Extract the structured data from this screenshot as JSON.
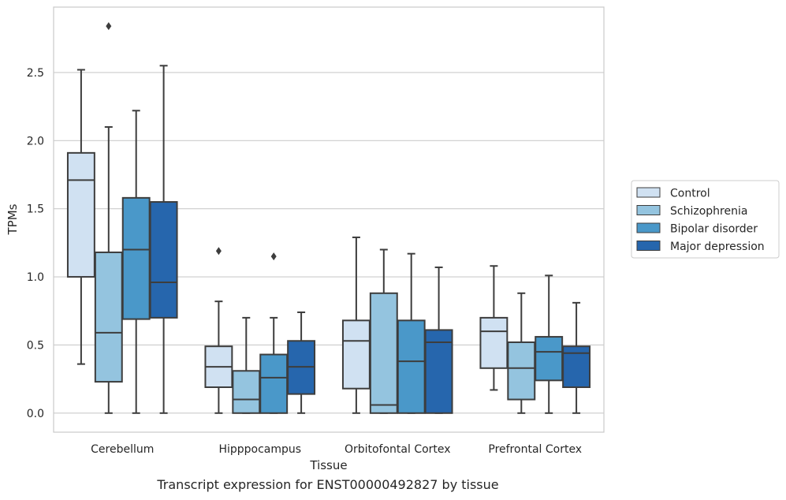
{
  "chart_data": {
    "type": "box",
    "xlabel": "Tissue",
    "ylabel": "TPMs",
    "caption": "Transcript expression for ENST00000492827 by tissue",
    "ylim": [
      -0.14,
      2.98
    ],
    "yticks": [
      "0.0",
      "0.5",
      "1.0",
      "1.5",
      "2.0",
      "2.5"
    ],
    "ytick_values": [
      0.0,
      0.5,
      1.0,
      1.5,
      2.0,
      2.5
    ],
    "grid": "horizontal",
    "legend_position": "right",
    "categories": [
      "Cerebellum",
      "Hipppocampus",
      "Orbitofontal Cortex",
      "Prefrontal Cortex"
    ],
    "series": [
      {
        "name": "Control",
        "color": "#d0e1f2",
        "boxes": [
          {
            "whisker_low": 0.36,
            "q1": 1.0,
            "median": 1.71,
            "q3": 1.91,
            "whisker_high": 2.52,
            "outliers": []
          },
          {
            "whisker_low": 0.0,
            "q1": 0.19,
            "median": 0.34,
            "q3": 0.49,
            "whisker_high": 0.82,
            "outliers": [
              1.19
            ]
          },
          {
            "whisker_low": 0.0,
            "q1": 0.18,
            "median": 0.53,
            "q3": 0.68,
            "whisker_high": 1.29,
            "outliers": []
          },
          {
            "whisker_low": 0.17,
            "q1": 0.33,
            "median": 0.6,
            "q3": 0.7,
            "whisker_high": 1.08,
            "outliers": []
          }
        ]
      },
      {
        "name": "Schizophrenia",
        "color": "#94c4df",
        "boxes": [
          {
            "whisker_low": 0.0,
            "q1": 0.23,
            "median": 0.59,
            "q3": 1.18,
            "whisker_high": 2.1,
            "outliers": [
              2.84
            ]
          },
          {
            "whisker_low": 0.0,
            "q1": 0.0,
            "median": 0.1,
            "q3": 0.31,
            "whisker_high": 0.7,
            "outliers": []
          },
          {
            "whisker_low": 0.0,
            "q1": 0.0,
            "median": 0.06,
            "q3": 0.88,
            "whisker_high": 1.2,
            "outliers": []
          },
          {
            "whisker_low": 0.0,
            "q1": 0.1,
            "median": 0.33,
            "q3": 0.52,
            "whisker_high": 0.88,
            "outliers": []
          }
        ]
      },
      {
        "name": "Bipolar disorder",
        "color": "#4a98c9",
        "boxes": [
          {
            "whisker_low": 0.0,
            "q1": 0.69,
            "median": 1.2,
            "q3": 1.58,
            "whisker_high": 2.22,
            "outliers": []
          },
          {
            "whisker_low": 0.0,
            "q1": 0.0,
            "median": 0.26,
            "q3": 0.43,
            "whisker_high": 0.7,
            "outliers": [
              1.15
            ]
          },
          {
            "whisker_low": 0.0,
            "q1": 0.0,
            "median": 0.38,
            "q3": 0.68,
            "whisker_high": 1.17,
            "outliers": []
          },
          {
            "whisker_low": 0.0,
            "q1": 0.24,
            "median": 0.45,
            "q3": 0.56,
            "whisker_high": 1.01,
            "outliers": []
          }
        ]
      },
      {
        "name": "Major depression",
        "color": "#2666ad",
        "boxes": [
          {
            "whisker_low": 0.0,
            "q1": 0.7,
            "median": 0.96,
            "q3": 1.55,
            "whisker_high": 2.55,
            "outliers": []
          },
          {
            "whisker_low": 0.0,
            "q1": 0.14,
            "median": 0.34,
            "q3": 0.53,
            "whisker_high": 0.74,
            "outliers": []
          },
          {
            "whisker_low": 0.0,
            "q1": 0.0,
            "median": 0.52,
            "q3": 0.61,
            "whisker_high": 1.07,
            "outliers": []
          },
          {
            "whisker_low": 0.0,
            "q1": 0.19,
            "median": 0.44,
            "q3": 0.49,
            "whisker_high": 0.81,
            "outliers": []
          }
        ]
      }
    ]
  }
}
